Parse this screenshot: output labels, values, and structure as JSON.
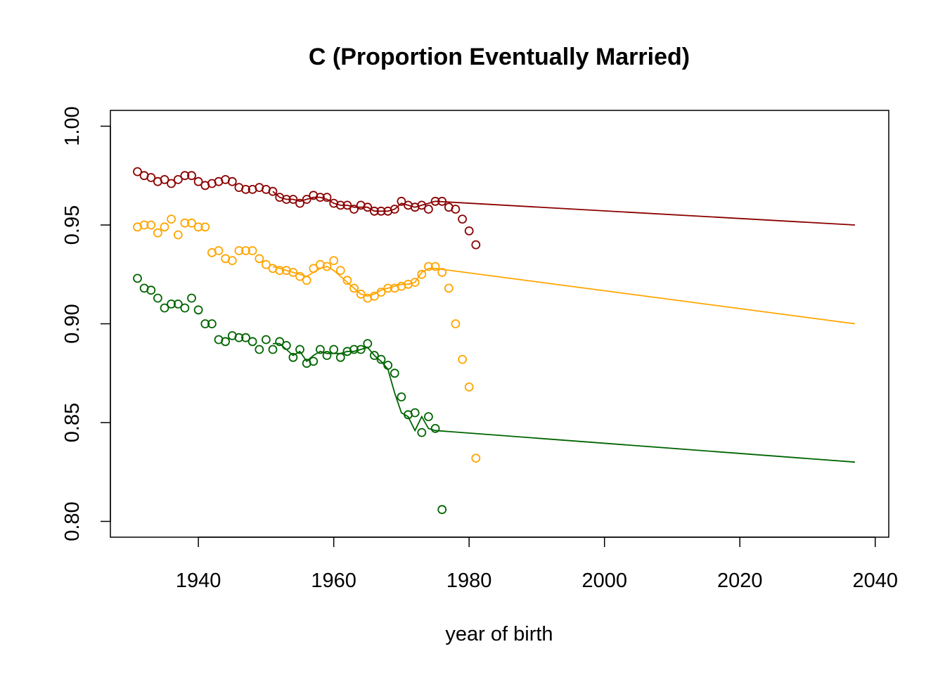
{
  "chart_data": {
    "type": "scatter",
    "title": "C (Proportion Eventually Married)",
    "xlabel": "year of birth",
    "ylabel": "",
    "xlim": [
      1927,
      2042
    ],
    "ylim": [
      0.792,
      1.008
    ],
    "x_ticks": [
      "1940",
      "1960",
      "1980",
      "2000",
      "2020",
      "2040"
    ],
    "y_ticks": [
      "0.80",
      "0.85",
      "0.90",
      "0.95",
      "1.00"
    ],
    "grid": false,
    "legend": "none",
    "series": [
      {
        "color": "#8b0000",
        "points": [
          [
            1931,
            0.977
          ],
          [
            1932,
            0.975
          ],
          [
            1933,
            0.974
          ],
          [
            1934,
            0.972
          ],
          [
            1935,
            0.973
          ],
          [
            1936,
            0.971
          ],
          [
            1937,
            0.973
          ],
          [
            1938,
            0.975
          ],
          [
            1939,
            0.975
          ],
          [
            1940,
            0.972
          ],
          [
            1941,
            0.97
          ],
          [
            1942,
            0.971
          ],
          [
            1943,
            0.972
          ],
          [
            1944,
            0.973
          ],
          [
            1945,
            0.972
          ],
          [
            1946,
            0.969
          ],
          [
            1947,
            0.968
          ],
          [
            1948,
            0.968
          ],
          [
            1949,
            0.969
          ],
          [
            1950,
            0.968
          ],
          [
            1951,
            0.967
          ],
          [
            1952,
            0.964
          ],
          [
            1953,
            0.963
          ],
          [
            1954,
            0.963
          ],
          [
            1955,
            0.961
          ],
          [
            1956,
            0.963
          ],
          [
            1957,
            0.965
          ],
          [
            1958,
            0.964
          ],
          [
            1959,
            0.964
          ],
          [
            1960,
            0.961
          ],
          [
            1961,
            0.96
          ],
          [
            1962,
            0.96
          ],
          [
            1963,
            0.958
          ],
          [
            1964,
            0.96
          ],
          [
            1965,
            0.959
          ],
          [
            1966,
            0.957
          ],
          [
            1967,
            0.957
          ],
          [
            1968,
            0.957
          ],
          [
            1969,
            0.958
          ],
          [
            1970,
            0.962
          ],
          [
            1971,
            0.96
          ],
          [
            1972,
            0.959
          ],
          [
            1973,
            0.96
          ],
          [
            1974,
            0.958
          ],
          [
            1975,
            0.962
          ],
          [
            1976,
            0.962
          ],
          [
            1977,
            0.959
          ],
          [
            1978,
            0.958
          ],
          [
            1979,
            0.953
          ],
          [
            1980,
            0.947
          ],
          [
            1981,
            0.94
          ]
        ],
        "line": [
          [
            1951,
            0.967
          ],
          [
            1952,
            0.964
          ],
          [
            1953,
            0.963
          ],
          [
            1954,
            0.963
          ],
          [
            1955,
            0.962
          ],
          [
            1956,
            0.963
          ],
          [
            1957,
            0.964
          ],
          [
            1958,
            0.964
          ],
          [
            1959,
            0.963
          ],
          [
            1960,
            0.961
          ],
          [
            1961,
            0.96
          ],
          [
            1962,
            0.96
          ],
          [
            1963,
            0.959
          ],
          [
            1964,
            0.959
          ],
          [
            1965,
            0.959
          ],
          [
            1966,
            0.957
          ],
          [
            1967,
            0.957
          ],
          [
            1968,
            0.957
          ],
          [
            1969,
            0.958
          ],
          [
            1970,
            0.961
          ],
          [
            1971,
            0.96
          ],
          [
            1972,
            0.959
          ],
          [
            1973,
            0.96
          ],
          [
            1974,
            0.961
          ],
          [
            1975,
            0.962
          ],
          [
            2037,
            0.95
          ]
        ]
      },
      {
        "color": "#ffa500",
        "points": [
          [
            1931,
            0.949
          ],
          [
            1932,
            0.95
          ],
          [
            1933,
            0.95
          ],
          [
            1934,
            0.946
          ],
          [
            1935,
            0.949
          ],
          [
            1936,
            0.953
          ],
          [
            1937,
            0.945
          ],
          [
            1938,
            0.951
          ],
          [
            1939,
            0.951
          ],
          [
            1940,
            0.949
          ],
          [
            1941,
            0.949
          ],
          [
            1942,
            0.936
          ],
          [
            1943,
            0.937
          ],
          [
            1944,
            0.933
          ],
          [
            1945,
            0.932
          ],
          [
            1946,
            0.937
          ],
          [
            1947,
            0.937
          ],
          [
            1948,
            0.937
          ],
          [
            1949,
            0.933
          ],
          [
            1950,
            0.93
          ],
          [
            1951,
            0.928
          ],
          [
            1952,
            0.927
          ],
          [
            1953,
            0.927
          ],
          [
            1954,
            0.926
          ],
          [
            1955,
            0.924
          ],
          [
            1956,
            0.922
          ],
          [
            1957,
            0.928
          ],
          [
            1958,
            0.93
          ],
          [
            1959,
            0.929
          ],
          [
            1960,
            0.932
          ],
          [
            1961,
            0.927
          ],
          [
            1962,
            0.922
          ],
          [
            1963,
            0.918
          ],
          [
            1964,
            0.915
          ],
          [
            1965,
            0.913
          ],
          [
            1966,
            0.914
          ],
          [
            1967,
            0.916
          ],
          [
            1968,
            0.918
          ],
          [
            1969,
            0.918
          ],
          [
            1970,
            0.919
          ],
          [
            1971,
            0.92
          ],
          [
            1972,
            0.921
          ],
          [
            1973,
            0.925
          ],
          [
            1974,
            0.929
          ],
          [
            1975,
            0.929
          ],
          [
            1976,
            0.926
          ],
          [
            1977,
            0.918
          ],
          [
            1978,
            0.9
          ],
          [
            1979,
            0.882
          ],
          [
            1980,
            0.868
          ],
          [
            1981,
            0.832
          ]
        ],
        "line": [
          [
            1951,
            0.929
          ],
          [
            1952,
            0.928
          ],
          [
            1953,
            0.927
          ],
          [
            1954,
            0.926
          ],
          [
            1955,
            0.925
          ],
          [
            1956,
            0.924
          ],
          [
            1957,
            0.926
          ],
          [
            1958,
            0.928
          ],
          [
            1959,
            0.929
          ],
          [
            1960,
            0.927
          ],
          [
            1961,
            0.924
          ],
          [
            1962,
            0.921
          ],
          [
            1963,
            0.918
          ],
          [
            1964,
            0.915
          ],
          [
            1965,
            0.914
          ],
          [
            1966,
            0.915
          ],
          [
            1967,
            0.917
          ],
          [
            1968,
            0.918
          ],
          [
            1969,
            0.919
          ],
          [
            1970,
            0.92
          ],
          [
            1971,
            0.92
          ],
          [
            1972,
            0.921
          ],
          [
            1973,
            0.926
          ],
          [
            1974,
            0.928
          ],
          [
            1975,
            0.928
          ],
          [
            2037,
            0.9
          ]
        ]
      },
      {
        "color": "#006400",
        "points": [
          [
            1931,
            0.923
          ],
          [
            1932,
            0.918
          ],
          [
            1933,
            0.917
          ],
          [
            1934,
            0.913
          ],
          [
            1935,
            0.908
          ],
          [
            1936,
            0.91
          ],
          [
            1937,
            0.91
          ],
          [
            1938,
            0.908
          ],
          [
            1939,
            0.913
          ],
          [
            1940,
            0.907
          ],
          [
            1941,
            0.9
          ],
          [
            1942,
            0.9
          ],
          [
            1943,
            0.892
          ],
          [
            1944,
            0.891
          ],
          [
            1945,
            0.894
          ],
          [
            1946,
            0.893
          ],
          [
            1947,
            0.893
          ],
          [
            1948,
            0.891
          ],
          [
            1949,
            0.887
          ],
          [
            1950,
            0.892
          ],
          [
            1951,
            0.887
          ],
          [
            1952,
            0.891
          ],
          [
            1953,
            0.889
          ],
          [
            1954,
            0.883
          ],
          [
            1955,
            0.887
          ],
          [
            1956,
            0.88
          ],
          [
            1957,
            0.881
          ],
          [
            1958,
            0.887
          ],
          [
            1959,
            0.884
          ],
          [
            1960,
            0.887
          ],
          [
            1961,
            0.883
          ],
          [
            1962,
            0.886
          ],
          [
            1963,
            0.887
          ],
          [
            1964,
            0.887
          ],
          [
            1965,
            0.89
          ],
          [
            1966,
            0.884
          ],
          [
            1967,
            0.882
          ],
          [
            1968,
            0.879
          ],
          [
            1969,
            0.875
          ],
          [
            1970,
            0.863
          ],
          [
            1971,
            0.854
          ],
          [
            1972,
            0.855
          ],
          [
            1973,
            0.845
          ],
          [
            1974,
            0.853
          ],
          [
            1975,
            0.847
          ],
          [
            1976,
            0.806
          ]
        ],
        "line": [
          [
            1951,
            0.89
          ],
          [
            1952,
            0.89
          ],
          [
            1953,
            0.887
          ],
          [
            1954,
            0.884
          ],
          [
            1955,
            0.886
          ],
          [
            1956,
            0.881
          ],
          [
            1957,
            0.884
          ],
          [
            1958,
            0.886
          ],
          [
            1959,
            0.885
          ],
          [
            1960,
            0.885
          ],
          [
            1961,
            0.885
          ],
          [
            1962,
            0.886
          ],
          [
            1963,
            0.886
          ],
          [
            1964,
            0.887
          ],
          [
            1965,
            0.888
          ],
          [
            1966,
            0.884
          ],
          [
            1967,
            0.881
          ],
          [
            1968,
            0.877
          ],
          [
            1969,
            0.865
          ],
          [
            1970,
            0.855
          ],
          [
            1971,
            0.853
          ],
          [
            1972,
            0.846
          ],
          [
            1973,
            0.853
          ],
          [
            1974,
            0.847
          ],
          [
            1975,
            0.846
          ],
          [
            2037,
            0.83
          ]
        ]
      }
    ]
  }
}
